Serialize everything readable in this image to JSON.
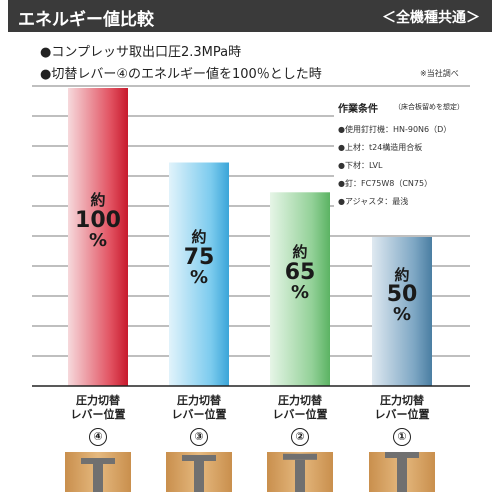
{
  "header": {
    "title": "エネルギー値比較",
    "scope": "＜全機種共通＞"
  },
  "conditions": [
    "●コンプレッサ取出口圧2.3MPa時",
    "●切替レバー④のエネルギー値を100％とした時"
  ],
  "source_note": "※当社調べ",
  "work_conditions": {
    "title": "作業条件",
    "title_note": "（床合板留めを想定）",
    "items": [
      "●使用釘打機：HN-90N6（D）",
      "●上材：t24構造用合板",
      "●下材：LVL",
      "●釘：FC75W8（CN75）",
      "●アジャスタ：最浅"
    ]
  },
  "colors": {
    "header_bg": "#3a3a3a",
    "bar_red": "#d9273a",
    "bar_blue": "#57b8e3",
    "bar_green": "#78c47e",
    "bar_steel": "#5e8fb0",
    "gridline": "#555555",
    "wood": "#d9a86a",
    "nail": "#707070"
  },
  "chart_data": {
    "type": "bar",
    "title": "エネルギー値比較",
    "categories": [
      "圧力切替レバー位置④",
      "圧力切替レバー位置③",
      "圧力切替レバー位置②",
      "圧力切替レバー位置①"
    ],
    "values": [
      100,
      75,
      65,
      50
    ],
    "unit": "%",
    "ylim": [
      0,
      100
    ],
    "grid": true,
    "legend": "none",
    "labels": [
      {
        "prefix": "約",
        "value": "100",
        "unit": "%"
      },
      {
        "prefix": "約",
        "value": "75",
        "unit": "%"
      },
      {
        "prefix": "約",
        "value": "65",
        "unit": "%"
      },
      {
        "prefix": "約",
        "value": "50",
        "unit": "%"
      }
    ],
    "positions": [
      {
        "line1": "圧力切替",
        "line2": "レバー位置",
        "number": "④"
      },
      {
        "line1": "圧力切替",
        "line2": "レバー位置",
        "number": "③"
      },
      {
        "line1": "圧力切替",
        "line2": "レバー位置",
        "number": "②"
      },
      {
        "line1": "圧力切替",
        "line2": "レバー位置",
        "number": "①"
      }
    ],
    "nail_depth": [
      1.0,
      0.75,
      0.65,
      0.5
    ]
  }
}
